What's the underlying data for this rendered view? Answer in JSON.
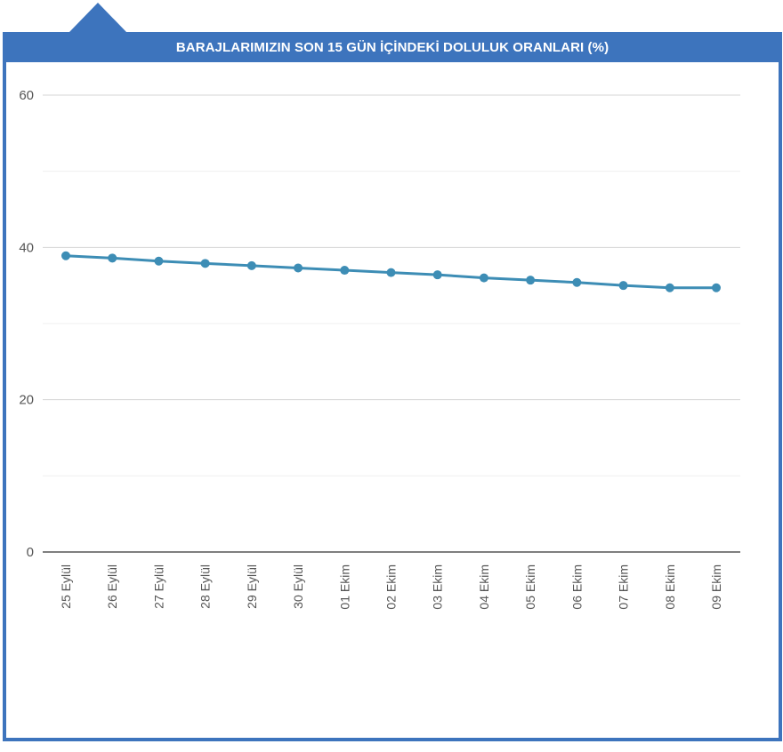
{
  "page": {
    "title": "BARAJLARIMIZIN SON 15 GÜN İÇİNDEKİ DOLULUK ORANLARI (%)"
  },
  "colors": {
    "frame": "#3d74bd",
    "line": "#3d8db5",
    "grid_major": "#d4d4d4",
    "grid_minor": "#efefef",
    "axis": "#333333"
  },
  "chart_data": {
    "type": "line",
    "title": "BARAJLARIMIZIN SON 15 GÜN İÇİNDEKİ DOLULUK ORANLARI (%)",
    "xlabel": "",
    "ylabel": "",
    "categories": [
      "25 Eylül",
      "26 Eylül",
      "27 Eylül",
      "28 Eylül",
      "29 Eylül",
      "30 Eylül",
      "01 Ekim",
      "02 Ekim",
      "03 Ekim",
      "04 Ekim",
      "05 Ekim",
      "06 Ekim",
      "07 Ekim",
      "08 Ekim",
      "09 Ekim"
    ],
    "series": [
      {
        "values": [
          38.9,
          38.6,
          38.2,
          37.9,
          37.6,
          37.3,
          37.0,
          36.7,
          36.4,
          36.0,
          35.7,
          35.4,
          35.0,
          34.7,
          34.7
        ]
      }
    ],
    "yticks": [
      0,
      20,
      40,
      60
    ],
    "ylim": [
      0,
      60
    ],
    "grid": true,
    "legend": "none"
  }
}
